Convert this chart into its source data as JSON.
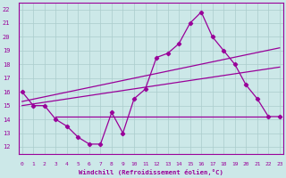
{
  "xlabel": "Windchill (Refroidissement éolien,°C)",
  "x_values": [
    0,
    1,
    2,
    3,
    4,
    5,
    6,
    7,
    8,
    9,
    10,
    11,
    12,
    13,
    14,
    15,
    16,
    17,
    18,
    19,
    20,
    21,
    22,
    23
  ],
  "main_line": [
    16,
    15,
    15,
    14,
    13.5,
    12.7,
    12.2,
    12.2,
    14.5,
    13,
    15.5,
    16.2,
    18.5,
    18.8,
    19.5,
    21,
    21.8,
    20,
    19,
    18,
    16.5,
    15.5,
    14.2,
    14.2
  ],
  "trend1_x": [
    0,
    23
  ],
  "trend1_y": [
    15.3,
    19.2
  ],
  "trend2_x": [
    0,
    23
  ],
  "trend2_y": [
    15.0,
    17.8
  ],
  "horiz_line_y": 14.2,
  "horiz_line_x_start": 3,
  "horiz_line_x_end": 22,
  "color": "#990099",
  "bg_color": "#cce8e8",
  "grid_color": "#aacccc",
  "ylim": [
    11.5,
    22.5
  ],
  "xlim": [
    -0.3,
    23.3
  ],
  "yticks": [
    12,
    13,
    14,
    15,
    16,
    17,
    18,
    19,
    20,
    21,
    22
  ],
  "xticks": [
    0,
    1,
    2,
    3,
    4,
    5,
    6,
    7,
    8,
    9,
    10,
    11,
    12,
    13,
    14,
    15,
    16,
    17,
    18,
    19,
    20,
    21,
    22,
    23
  ]
}
